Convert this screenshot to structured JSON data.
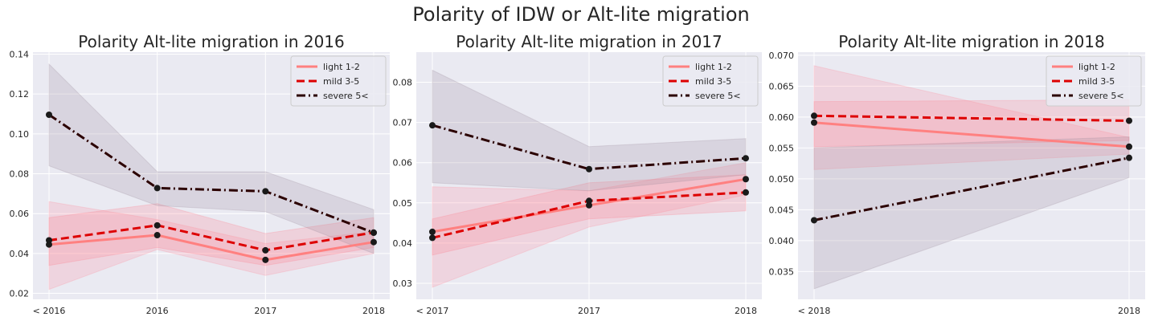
{
  "figure_title": "Polarity of IDW or Alt-lite migration",
  "chart_data": [
    {
      "type": "line",
      "title": "Polarity Alt-lite migration in 2016",
      "xlabel": "",
      "ylabel": "",
      "categories": [
        "< 2016",
        "2016",
        "2017",
        "2018"
      ],
      "ylim": [
        0.017,
        0.141
      ],
      "yticks": [
        0.02,
        0.04,
        0.06,
        0.08,
        0.1,
        0.12,
        0.14
      ],
      "ytick_labels": [
        "0.02",
        "0.04",
        "0.06",
        "0.08",
        "0.10",
        "0.12",
        "0.14"
      ],
      "grid": true,
      "legend": "top-right",
      "series": [
        {
          "name": "light 1-2",
          "values": [
            0.0445,
            0.0492,
            0.0368,
            0.0457
          ],
          "lower": [
            0.022,
            0.042,
            0.029,
            0.04
          ],
          "upper": [
            0.066,
            0.057,
            0.045,
            0.051
          ]
        },
        {
          "name": "mild 3-5",
          "values": [
            0.0466,
            0.0541,
            0.0416,
            0.0505
          ],
          "lower": [
            0.034,
            0.043,
            0.034,
            0.043
          ],
          "upper": [
            0.058,
            0.065,
            0.05,
            0.058
          ]
        },
        {
          "name": "severe 5<",
          "values": [
            0.1096,
            0.0728,
            0.0712,
            0.0504
          ],
          "lower": [
            0.084,
            0.064,
            0.061,
            0.04
          ],
          "upper": [
            0.135,
            0.081,
            0.081,
            0.062
          ]
        }
      ]
    },
    {
      "type": "line",
      "title": "Polarity Alt-lite migration in 2017",
      "xlabel": "",
      "ylabel": "",
      "categories": [
        "< 2017",
        "2017",
        "2018"
      ],
      "ylim": [
        0.026,
        0.0875
      ],
      "yticks": [
        0.03,
        0.04,
        0.05,
        0.06,
        0.07,
        0.08
      ],
      "ytick_labels": [
        "0.03",
        "0.04",
        "0.05",
        "0.06",
        "0.07",
        "0.08"
      ],
      "grid": true,
      "legend": "top-right",
      "series": [
        {
          "name": "light 1-2",
          "values": [
            0.0428,
            0.0494,
            0.0559
          ],
          "lower": [
            0.029,
            0.044,
            0.052
          ],
          "upper": [
            0.054,
            0.053,
            0.06
          ]
        },
        {
          "name": "mild 3-5",
          "values": [
            0.0413,
            0.0505,
            0.0526
          ],
          "lower": [
            0.037,
            0.046,
            0.048
          ],
          "upper": [
            0.046,
            0.055,
            0.057
          ]
        },
        {
          "name": "severe 5<",
          "values": [
            0.0693,
            0.0584,
            0.0611
          ],
          "lower": [
            0.055,
            0.053,
            0.057
          ],
          "upper": [
            0.083,
            0.064,
            0.066
          ]
        }
      ]
    },
    {
      "type": "line",
      "title": "Polarity Alt-lite migration in 2018",
      "xlabel": "",
      "ylabel": "",
      "categories": [
        "< 2018",
        "2018"
      ],
      "ylim": [
        0.0305,
        0.0705
      ],
      "yticks": [
        0.035,
        0.04,
        0.045,
        0.05,
        0.055,
        0.06,
        0.065,
        0.07
      ],
      "ytick_labels": [
        "0.035",
        "0.040",
        "0.045",
        "0.050",
        "0.055",
        "0.060",
        "0.065",
        "0.070"
      ],
      "grid": true,
      "legend": "top-right",
      "series": [
        {
          "name": "light 1-2",
          "values": [
            0.0591,
            0.0552
          ],
          "lower": [
            0.0515,
            0.054
          ],
          "upper": [
            0.0683,
            0.0567
          ]
        },
        {
          "name": "mild 3-5",
          "values": [
            0.0602,
            0.0594
          ],
          "lower": [
            0.0552,
            0.0562
          ],
          "upper": [
            0.0625,
            0.0628
          ]
        },
        {
          "name": "severe 5<",
          "values": [
            0.0433,
            0.0534
          ],
          "lower": [
            0.0322,
            0.0502
          ],
          "upper": [
            0.055,
            0.0568
          ]
        }
      ]
    }
  ],
  "series_styles": [
    {
      "color": "#ff8080",
      "fill": "#ff8a9a",
      "dash": ""
    },
    {
      "color": "#dd0000",
      "fill": "#ff7a8a",
      "dash": "10,5"
    },
    {
      "color": "#2b0000",
      "fill": "#9a8a9a",
      "dash": "11,4,2,4"
    }
  ],
  "colors": {
    "plot_bg": "#eaeaf2",
    "grid": "#ffffff",
    "marker": "#1a1a1a"
  }
}
